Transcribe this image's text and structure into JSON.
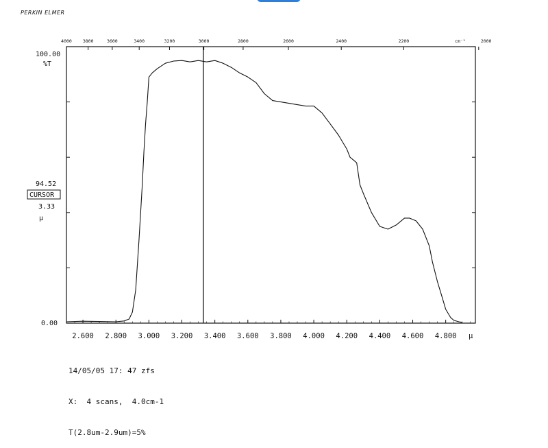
{
  "header": {
    "brand": "PERKIN ELMER"
  },
  "top_axis": {
    "unit": "cm⁻¹",
    "ticks": [
      {
        "value": 4000,
        "label": "4000"
      },
      {
        "value": 3800,
        "label": "3800"
      },
      {
        "value": 3600,
        "label": "3600"
      },
      {
        "value": 3400,
        "label": "3400"
      },
      {
        "value": 3200,
        "label": "3200"
      },
      {
        "value": 3000,
        "label": "3000"
      },
      {
        "value": 2800,
        "label": "2800"
      },
      {
        "value": 2600,
        "label": "2600"
      },
      {
        "value": 2400,
        "label": "2400"
      },
      {
        "value": 2200,
        "label": "2200"
      },
      {
        "value": 2000,
        "label": "2000"
      }
    ]
  },
  "left_axis": {
    "top_label": "100.00",
    "unit": "%T",
    "bottom_label": "0.00"
  },
  "cursor": {
    "y_value": "94.52",
    "label": "CURSOR",
    "x_value": "3.33",
    "x_unit": "μ"
  },
  "bottom_axis": {
    "unit": "μ",
    "tick_labels": [
      "2.600",
      "2.800",
      "3.000",
      "3.200",
      "3.400",
      "3.600",
      "3.800",
      "4.000",
      "4.200",
      "4.400",
      "4.600",
      "4.800"
    ]
  },
  "footer": {
    "line1": "14/05/05 17: 47 zfs",
    "line2": "X:  4 scans,  4.0cm-1",
    "line3": "T(2.8um-2.9um)=5%"
  },
  "chart_data": {
    "type": "line",
    "title": "",
    "xlabel": "μ",
    "ylabel": "%T",
    "xlim": [
      2.5,
      4.98
    ],
    "ylim": [
      0,
      100
    ],
    "grid": false,
    "cursor_x": 3.33,
    "series": [
      {
        "x": [
          2.5,
          2.6,
          2.7,
          2.8,
          2.85,
          2.88,
          2.9,
          2.92,
          2.94,
          2.96,
          2.97,
          2.98,
          2.99,
          3.0,
          3.02,
          3.05,
          3.1,
          3.15,
          3.2,
          3.25,
          3.3,
          3.35,
          3.4,
          3.45,
          3.5,
          3.55,
          3.6,
          3.65,
          3.7,
          3.75,
          3.8,
          3.85,
          3.9,
          3.95,
          4.0,
          4.05,
          4.1,
          4.15,
          4.18,
          4.2,
          4.22,
          4.24,
          4.26,
          4.28,
          4.3,
          4.35,
          4.4,
          4.45,
          4.5,
          4.55,
          4.58,
          4.62,
          4.66,
          4.7,
          4.72,
          4.75,
          4.78,
          4.8,
          4.83,
          4.85,
          4.88,
          4.9
        ],
        "y": [
          0.5,
          0.7,
          0.6,
          0.5,
          0.8,
          1.5,
          4,
          12,
          30,
          50,
          62,
          72,
          80,
          89,
          90.5,
          92,
          94,
          94.8,
          95,
          94.5,
          95,
          94.5,
          95,
          94,
          92.5,
          90.5,
          89,
          87,
          83,
          80.5,
          80,
          79.5,
          79,
          78.5,
          78.5,
          76,
          72,
          68,
          65,
          63,
          60,
          59,
          58,
          50,
          47,
          40,
          35,
          34,
          35.5,
          38,
          38,
          37,
          34,
          28,
          22,
          15,
          9,
          5,
          2,
          1,
          0.5,
          0.3
        ]
      }
    ]
  }
}
